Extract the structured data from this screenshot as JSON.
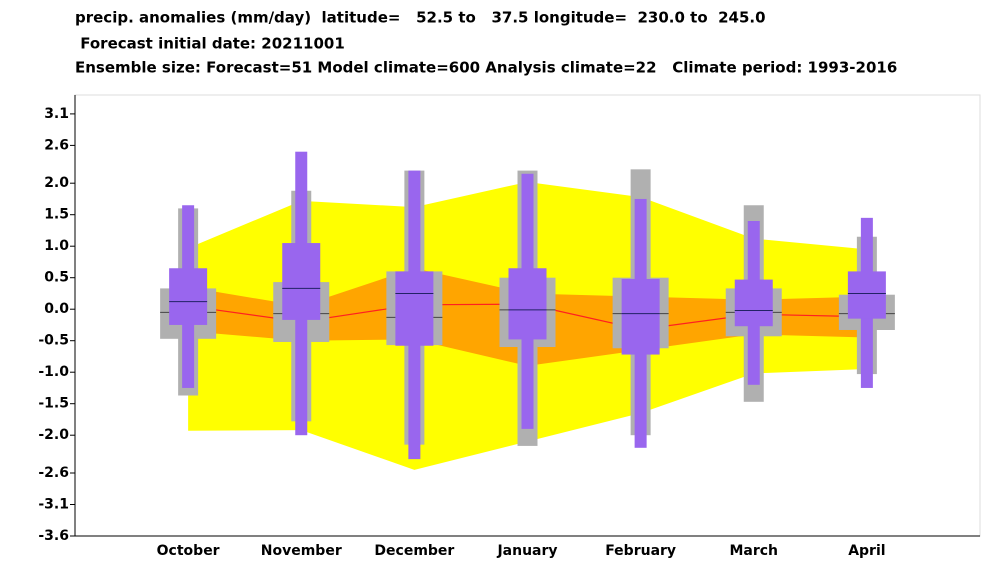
{
  "chart_data": {
    "type": "box",
    "title_lines": [
      "precip. anomalies (mm/day)  latitude=   52.5 to   37.5 longitude=  230.0 to  245.0",
      " Forecast initial date: 20211001",
      "Ensemble size: Forecast=51 Model climate=600 Analysis climate=22   Climate period: 1993-2016"
    ],
    "categories": [
      "October",
      "November",
      "December",
      "January",
      "February",
      "March",
      "April"
    ],
    "ylim": [
      -3.6,
      3.4
    ],
    "yticks": [
      3.1,
      2.6,
      {
        "value": 2,
        "label": "2.0"
      },
      1.5,
      {
        "value": 1,
        "label": "1.0"
      },
      0.5,
      {
        "value": 0,
        "label": "0.0"
      },
      -0.5,
      {
        "value": -1,
        "label": "-1.0"
      },
      -1.5,
      {
        "value": -2,
        "label": "-2.0"
      },
      -2.6,
      -3.1,
      -3.6
    ],
    "bands": [
      {
        "color": "#ffff00",
        "upper": [
          0.97,
          1.72,
          1.62,
          2.02,
          1.78,
          1.12,
          0.95
        ],
        "lower": [
          -1.93,
          -1.92,
          -2.55,
          -2.1,
          -1.65,
          -1.02,
          -0.95
        ]
      },
      {
        "color": "#ffa500",
        "upper": [
          0.35,
          0.05,
          0.65,
          0.25,
          0.2,
          0.15,
          0.2
        ],
        "lower": [
          -0.35,
          -0.5,
          -0.48,
          -0.9,
          -0.65,
          -0.4,
          -0.45
        ]
      }
    ],
    "line": {
      "color": "#ff2020",
      "values": [
        0.05,
        -0.2,
        0.07,
        0.08,
        -0.32,
        -0.08,
        -0.12
      ]
    },
    "boxes": [
      {
        "color": "#b0b0b0",
        "whisker_high": [
          1.6,
          1.88,
          2.2,
          2.2,
          2.22,
          1.65,
          1.15
        ],
        "box_high": [
          0.33,
          0.43,
          0.6,
          0.5,
          0.5,
          0.33,
          0.23
        ],
        "median": [
          -0.05,
          -0.07,
          -0.13,
          -0.01,
          -0.07,
          -0.05,
          -0.07
        ],
        "box_low": [
          -0.47,
          -0.52,
          -0.57,
          -0.6,
          -0.62,
          -0.43,
          -0.33
        ],
        "whisker_low": [
          -1.37,
          -1.78,
          -2.15,
          -2.17,
          -2.0,
          -1.47,
          -1.03
        ]
      },
      {
        "color": "#9966ee",
        "whisker_high": [
          1.65,
          2.5,
          2.2,
          2.15,
          1.75,
          1.4,
          1.45
        ],
        "box_high": [
          0.65,
          1.05,
          0.6,
          0.65,
          0.48,
          0.47,
          0.6
        ],
        "median": [
          0.12,
          0.33,
          0.25,
          -0.01,
          -0.07,
          -0.02,
          0.25
        ],
        "box_low": [
          -0.25,
          -0.17,
          -0.58,
          -0.48,
          -0.72,
          -0.27,
          -0.15
        ],
        "whisker_low": [
          -1.25,
          -2.0,
          -2.38,
          -1.9,
          -2.2,
          -1.2,
          -1.25
        ]
      }
    ]
  }
}
